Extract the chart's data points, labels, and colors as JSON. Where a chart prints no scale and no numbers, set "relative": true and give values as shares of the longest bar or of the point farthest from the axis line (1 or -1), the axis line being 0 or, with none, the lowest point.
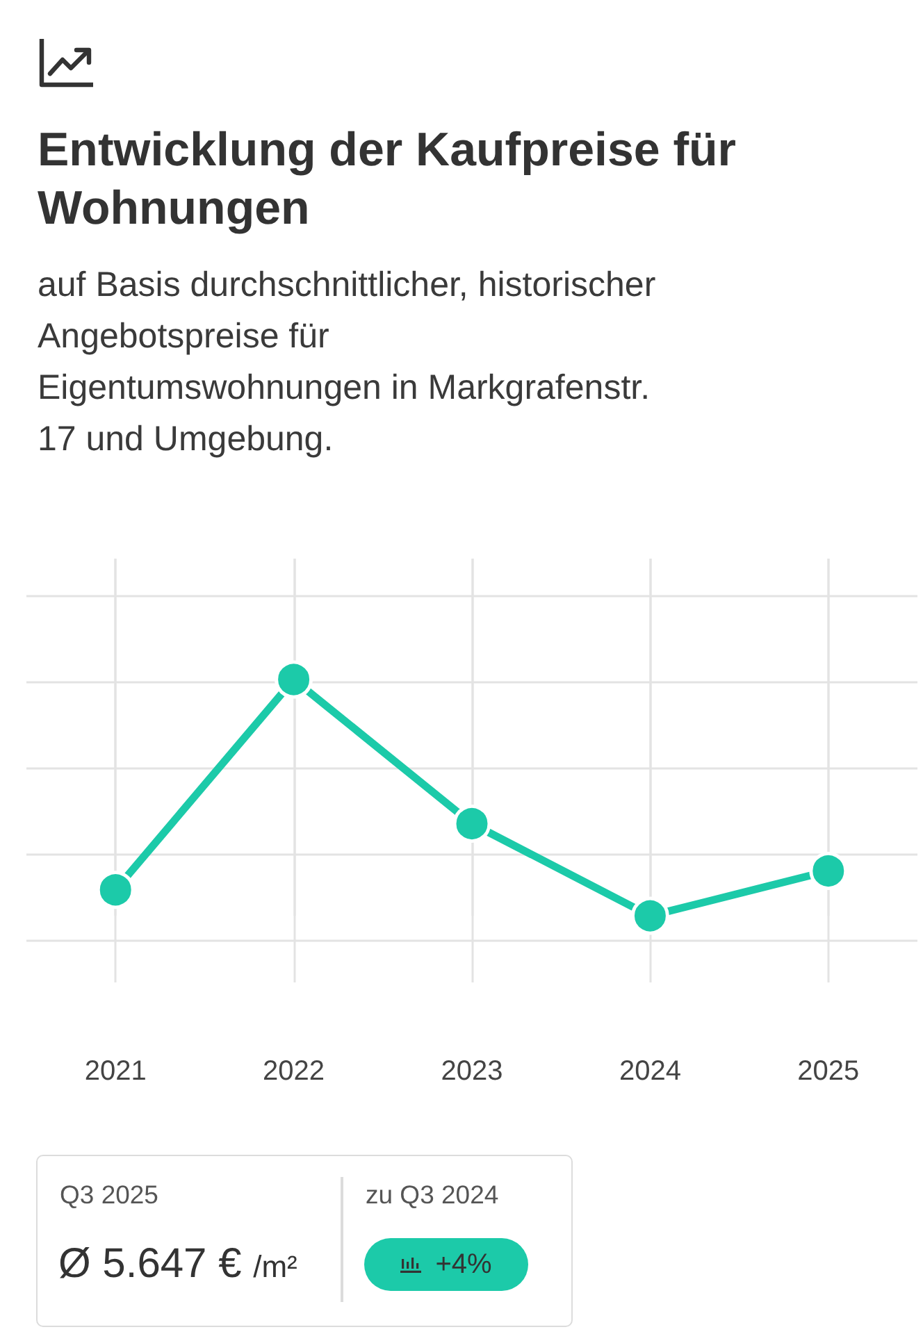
{
  "chart_data": {
    "type": "line",
    "title": "Entwicklung der Kaufpreise für Wohnungen",
    "subtitle": "auf Basis durchschnittlicher, historischer Angebotspreise für Eigentumswohnungen in Markgrafenstr. 17 und Umgebung.",
    "categories": [
      "2021",
      "2022",
      "2023",
      "2024",
      "2025"
    ],
    "values": [
      0.11,
      1,
      0.39,
      0,
      0.19
    ],
    "color": "#1ccaa9",
    "relative": true,
    "grid": true,
    "marker": "circle",
    "annotations": [
      "Q3 2025",
      "Ø 5.647 € /m²",
      "zu Q3 2024",
      "+4%"
    ]
  }
}
